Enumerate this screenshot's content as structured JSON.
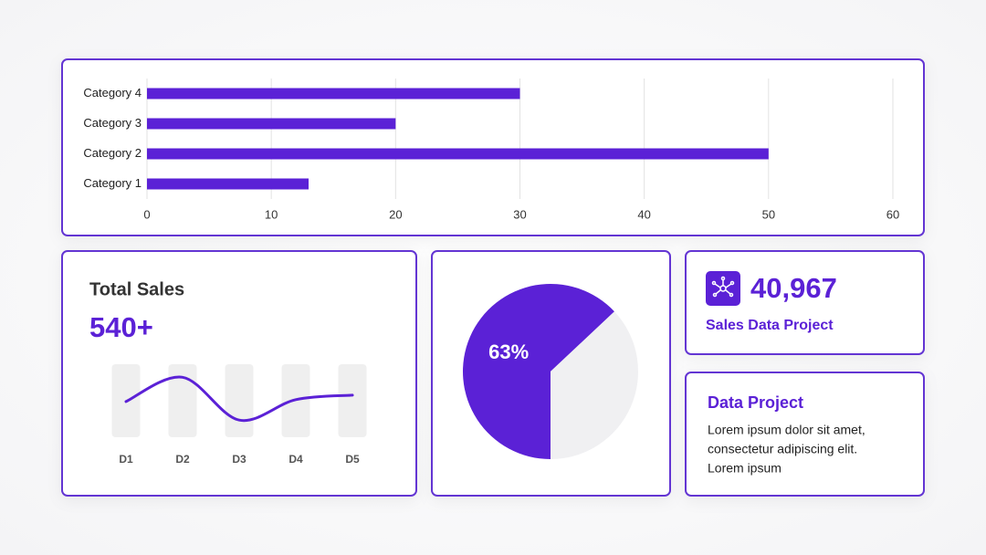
{
  "chart_data": [
    {
      "type": "hbar",
      "categories": [
        "Category 1",
        "Category 2",
        "Category 3",
        "Category 4"
      ],
      "values": [
        13,
        50,
        20,
        30
      ],
      "color": "#5b21d6",
      "xlim": [
        0,
        60
      ],
      "xticks": [
        0,
        10,
        20,
        30,
        40,
        50,
        60
      ],
      "grid": true
    },
    {
      "type": "line",
      "title": "Total Sales",
      "subtitle": "540+",
      "categories": [
        "D1",
        "D2",
        "D3",
        "D4",
        "D5"
      ],
      "values": [
        4.3,
        8.1,
        1.4,
        4.6,
        5.3
      ],
      "color": "#5b21d6",
      "ylim": [
        0,
        10
      ]
    },
    {
      "type": "pie",
      "values": [
        63,
        37
      ],
      "value_labels": [
        "63%",
        null
      ],
      "colors": [
        "#5b21d6",
        "#f0f0f2"
      ]
    }
  ],
  "cards": [
    {
      "value": "40,967",
      "title": "Sales Data Project"
    },
    {
      "title": "Data Project",
      "body": [
        "Lorem ipsum dolor sit amet,",
        "consectetur adipiscing elit.",
        "Lorem ipsum"
      ]
    }
  ]
}
